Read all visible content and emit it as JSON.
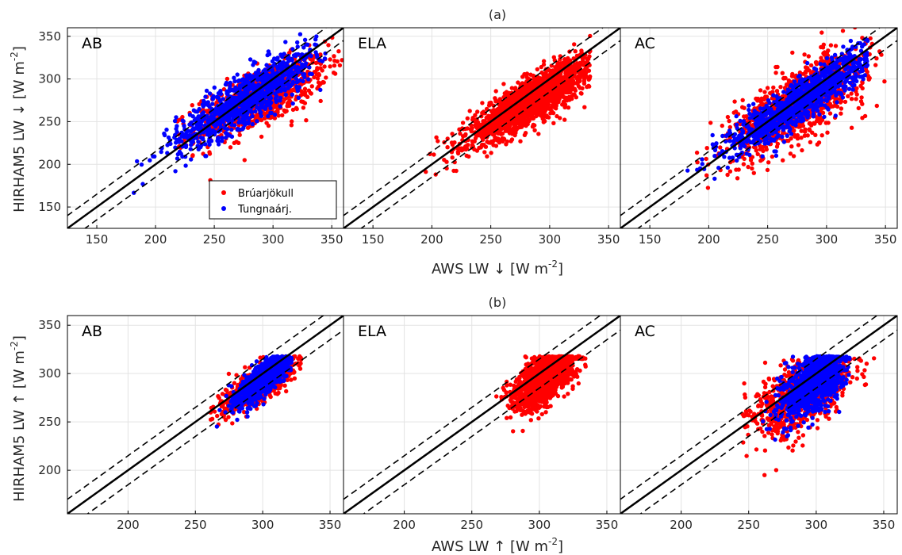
{
  "colors": {
    "bruar": "#ff0000",
    "tungna": "#0000ff",
    "grid": "#e3e3e3",
    "axis": "#000000"
  },
  "chart_data": [
    {
      "type": "scatter",
      "title": "(a)",
      "xlabel_main": "AWS LW",
      "xlabel_arrow": "↓",
      "xlabel_unit": "[W m",
      "xlabel_exp": "-2",
      "xlabel_close": "]",
      "ylabel_main": "HIRHAM5 LW",
      "ylabel_arrow": "↓",
      "ylabel_unit": "[W m",
      "ylabel_exp": "-2",
      "ylabel_close": "]",
      "xlim": [
        125,
        360
      ],
      "ylim": [
        125,
        360
      ],
      "xticks": [
        150,
        200,
        250,
        300,
        350
      ],
      "yticks": [
        150,
        200,
        250,
        300,
        350
      ],
      "grid": true,
      "reference_lines": {
        "one_to_one": true,
        "offsets": [
          15,
          -15
        ]
      },
      "legend": {
        "placement": "bottom-right of first panel",
        "entries": [
          "Brúarjökull",
          "Tungnaárj."
        ]
      },
      "panels": [
        {
          "label": "AB",
          "series": [
            {
              "name": "Brúarjökull",
              "cloud": {
                "x_range": [
                  205,
                  360
                ],
                "center": [
                  290,
                  278
                ],
                "sx": 28,
                "sy": 24,
                "rho": 0.72,
                "n": 900
              }
            },
            {
              "name": "Tungnaárj.",
              "cloud": {
                "x_range": [
                  180,
                  345
                ],
                "center": [
                  278,
                  278
                ],
                "sx": 30,
                "sy": 29,
                "rho": 0.86,
                "n": 1000
              }
            }
          ]
        },
        {
          "label": "ELA",
          "series": [
            {
              "name": "Brúarjökull",
              "cloud": {
                "x_range": [
                  193,
                  335
                ],
                "center": [
                  285,
                  275
                ],
                "sx": 27,
                "sy": 25,
                "rho": 0.86,
                "n": 1800
              }
            }
          ]
        },
        {
          "label": "AC",
          "series": [
            {
              "name": "Brúarjökull",
              "cloud": {
                "x_range": [
                  190,
                  352
                ],
                "center": [
                  275,
                  270
                ],
                "sx": 29,
                "sy": 30,
                "rho": 0.72,
                "n": 1000
              }
            },
            {
              "name": "Tungnaárj.",
              "cloud": {
                "x_range": [
                  182,
                  335
                ],
                "center": [
                  278,
                  275
                ],
                "sx": 30,
                "sy": 30,
                "rho": 0.9,
                "n": 1100
              }
            }
          ]
        }
      ]
    },
    {
      "type": "scatter",
      "title": "(b)",
      "xlabel_main": "AWS LW",
      "xlabel_arrow": "↑",
      "xlabel_unit": "[W m",
      "xlabel_exp": "-2",
      "xlabel_close": "]",
      "ylabel_main": "HIRHAM5 LW",
      "ylabel_arrow": "↑",
      "ylabel_unit": "[W m",
      "ylabel_exp": "-2",
      "ylabel_close": "]",
      "xlim": [
        155,
        360
      ],
      "ylim": [
        155,
        360
      ],
      "xticks": [
        200,
        250,
        300,
        350
      ],
      "yticks": [
        200,
        250,
        300,
        350
      ],
      "grid": true,
      "reference_lines": {
        "one_to_one": true,
        "offsets": [
          15,
          -15
        ]
      },
      "panels": [
        {
          "label": "AB",
          "series": [
            {
              "name": "Brúarjökull",
              "cloud": {
                "x_range": [
                  240,
                  330
                ],
                "center": [
                  298,
                  290
                ],
                "sx": 14,
                "sy": 15,
                "rho": 0.78,
                "n": 700,
                "y_cap": 318
              }
            },
            {
              "name": "Tungnaárj.",
              "cloud": {
                "x_range": [
                  255,
                  322
                ],
                "center": [
                  302,
                  295
                ],
                "sx": 11,
                "sy": 14,
                "rho": 0.8,
                "n": 900,
                "y_cap": 318
              }
            }
          ]
        },
        {
          "label": "ELA",
          "series": [
            {
              "name": "Brúarjökull",
              "cloud": {
                "x_range": [
                  255,
                  335
                ],
                "center": [
                  303,
                  295
                ],
                "sx": 11,
                "sy": 16,
                "rho": 0.62,
                "n": 1400,
                "y_cap": 318
              }
            }
          ]
        },
        {
          "label": "AC",
          "series": [
            {
              "name": "Brúarjökull",
              "cloud": {
                "x_range": [
                  245,
                  350
                ],
                "center": [
                  290,
                  280
                ],
                "sx": 18,
                "sy": 22,
                "rho": 0.6,
                "n": 900,
                "y_cap": 316
              }
            },
            {
              "name": "Tungnaárj.",
              "cloud": {
                "x_range": [
                  238,
                  325
                ],
                "center": [
                  298,
                  290
                ],
                "sx": 12,
                "sy": 18,
                "rho": 0.55,
                "n": 1000,
                "y_cap": 318
              }
            }
          ]
        }
      ]
    }
  ]
}
